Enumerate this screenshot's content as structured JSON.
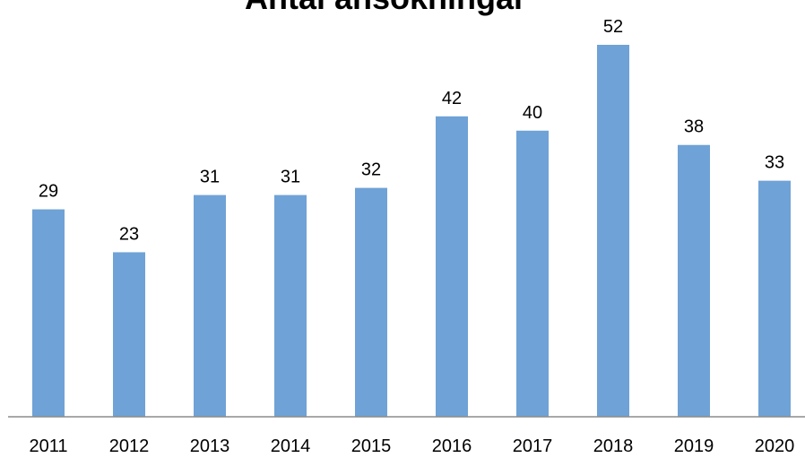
{
  "chart_data": {
    "type": "bar",
    "title": "Antal ansökningar",
    "categories": [
      "2011",
      "2012",
      "2013",
      "2014",
      "2015",
      "2016",
      "2017",
      "2018",
      "2019",
      "2020"
    ],
    "values": [
      29,
      23,
      31,
      31,
      32,
      42,
      40,
      52,
      38,
      33
    ],
    "color": "#6fa2d6",
    "ylim": [
      0,
      52
    ]
  }
}
